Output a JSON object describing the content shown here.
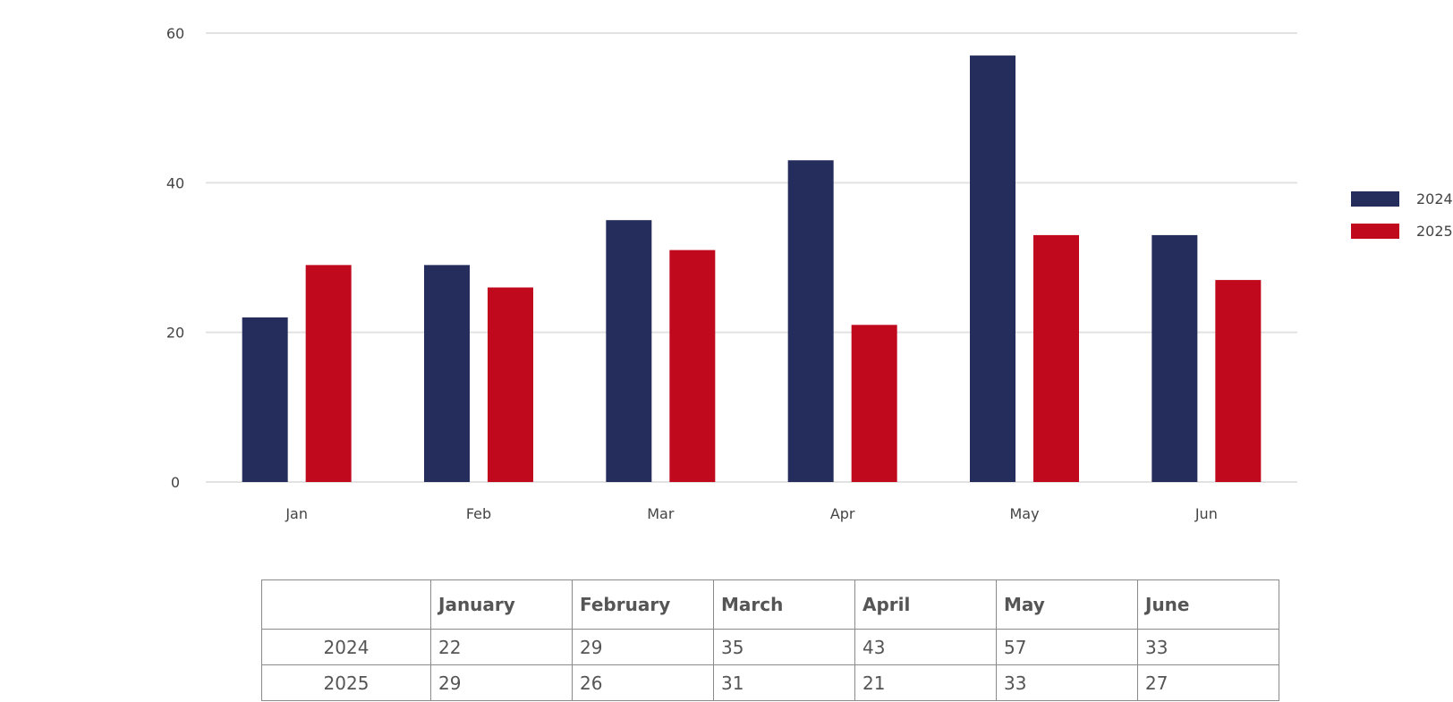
{
  "chart_data": {
    "type": "bar",
    "categories": [
      "Jan",
      "Feb",
      "Mar",
      "Apr",
      "May",
      "Jun"
    ],
    "series": [
      {
        "name": "2024",
        "values": [
          22,
          29,
          35,
          43,
          57,
          33
        ],
        "color": "#252d5c"
      },
      {
        "name": "2025",
        "values": [
          29,
          26,
          31,
          21,
          33,
          27
        ],
        "color": "#c0091d"
      }
    ],
    "title": "",
    "xlabel": "",
    "ylabel": "",
    "ylim": [
      0,
      60
    ],
    "yticks": [
      0,
      20,
      40,
      60
    ],
    "grid": true,
    "legend_position": "right"
  },
  "table": {
    "header": [
      "",
      "January",
      "February",
      "March",
      "April",
      "May",
      "June"
    ],
    "rows": [
      {
        "label": "2024",
        "values": [
          "22",
          "29",
          "35",
          "43",
          "57",
          "33"
        ]
      },
      {
        "label": "2025",
        "values": [
          "29",
          "26",
          "31",
          "21",
          "33",
          "27"
        ]
      }
    ]
  }
}
